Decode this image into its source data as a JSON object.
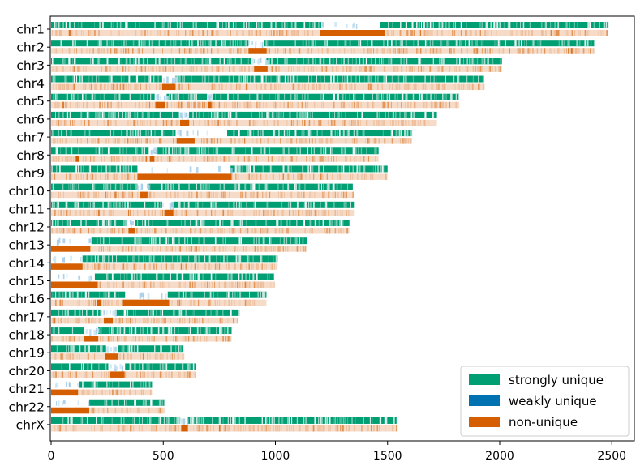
{
  "chart_data": {
    "type": "bar",
    "orientation": "horizontal",
    "xlim": [
      0,
      2560
    ],
    "x_ticks": [
      0,
      500,
      1000,
      1500,
      2000,
      2500
    ],
    "x_tick_labels": [
      "0",
      "500",
      "1000",
      "1500",
      "2000",
      "2500"
    ],
    "chromosomes": [
      {
        "name": "chr1",
        "length": 2485,
        "nonunique": [
          [
            1200,
            1490
          ]
        ],
        "gaps": [
          [
            1205,
            1465
          ]
        ]
      },
      {
        "name": "chr2",
        "length": 2425,
        "nonunique": [
          [
            880,
            960
          ]
        ],
        "gaps": [
          [
            880,
            950
          ]
        ]
      },
      {
        "name": "chr3",
        "length": 2010,
        "nonunique": [
          [
            905,
            965
          ]
        ],
        "gaps": [
          [
            900,
            960
          ]
        ]
      },
      {
        "name": "chr4",
        "length": 1930,
        "nonunique": [
          [
            495,
            555
          ]
        ],
        "gaps": [
          [
            495,
            555
          ]
        ]
      },
      {
        "name": "chr5",
        "length": 1820,
        "nonunique": [
          [
            465,
            510
          ],
          [
            700,
            715
          ]
        ],
        "gaps": [
          [
            462,
            515
          ],
          [
            695,
            715
          ]
        ]
      },
      {
        "name": "chr6",
        "length": 1720,
        "nonunique": [
          [
            575,
            615
          ]
        ],
        "gaps": [
          [
            570,
            615
          ]
        ]
      },
      {
        "name": "chr7",
        "length": 1605,
        "nonunique": [
          [
            560,
            640
          ]
        ],
        "gaps": [
          [
            555,
            785
          ]
        ]
      },
      {
        "name": "chr8",
        "length": 1460,
        "nonunique": [
          [
            440,
            460
          ],
          [
            110,
            125
          ]
        ],
        "gaps": [
          [
            435,
            470
          ]
        ]
      },
      {
        "name": "chr9",
        "length": 1500,
        "nonunique": [
          [
            385,
            805
          ]
        ],
        "gaps": [
          [
            385,
            800
          ]
        ]
      },
      {
        "name": "chr10",
        "length": 1345,
        "nonunique": [
          [
            395,
            430
          ]
        ],
        "gaps": [
          [
            385,
            435
          ]
        ]
      },
      {
        "name": "chr11",
        "length": 1350,
        "nonunique": [
          [
            505,
            545
          ]
        ],
        "gaps": [
          [
            495,
            545
          ]
        ]
      },
      {
        "name": "chr12",
        "length": 1330,
        "nonunique": [
          [
            345,
            375
          ]
        ],
        "gaps": [
          [
            340,
            375
          ]
        ]
      },
      {
        "name": "chr13",
        "length": 1140,
        "nonunique": [
          [
            0,
            175
          ]
        ],
        "gaps": [
          [
            0,
            180
          ]
        ]
      },
      {
        "name": "chr14",
        "length": 1010,
        "nonunique": [
          [
            0,
            140
          ]
        ],
        "gaps": [
          [
            0,
            140
          ]
        ]
      },
      {
        "name": "chr15",
        "length": 995,
        "nonunique": [
          [
            0,
            205
          ]
        ],
        "gaps": [
          [
            0,
            195
          ]
        ]
      },
      {
        "name": "chr16",
        "length": 960,
        "nonunique": [
          [
            205,
            225
          ],
          [
            320,
            525
          ]
        ],
        "gaps": [
          [
            330,
            520
          ]
        ]
      },
      {
        "name": "chr17",
        "length": 835,
        "nonunique": [
          [
            235,
            275
          ]
        ],
        "gaps": [
          [
            225,
            285
          ]
        ]
      },
      {
        "name": "chr18",
        "length": 805,
        "nonunique": [
          [
            145,
            210
          ]
        ],
        "gaps": [
          [
            145,
            210
          ]
        ]
      },
      {
        "name": "chr19",
        "length": 590,
        "nonunique": [
          [
            240,
            300
          ]
        ],
        "gaps": [
          [
            245,
            300
          ]
        ]
      },
      {
        "name": "chr20",
        "length": 645,
        "nonunique": [
          [
            260,
            325
          ]
        ],
        "gaps": [
          [
            255,
            330
          ]
        ]
      },
      {
        "name": "chr21",
        "length": 450,
        "nonunique": [
          [
            0,
            120
          ]
        ],
        "gaps": [
          [
            0,
            125
          ]
        ]
      },
      {
        "name": "chr22",
        "length": 510,
        "nonunique": [
          [
            0,
            170
          ]
        ],
        "gaps": [
          [
            0,
            170
          ]
        ]
      },
      {
        "name": "chrX",
        "length": 1540,
        "nonunique": [
          [
            580,
            610
          ]
        ],
        "gaps": [
          [
            575,
            610
          ]
        ]
      }
    ],
    "legend": {
      "position": "bottom-right",
      "entries": [
        {
          "label": "strongly unique",
          "color": "#009E73"
        },
        {
          "label": "weakly unique",
          "color": "#0072B2"
        },
        {
          "label": "non-unique",
          "color": "#D55E00"
        }
      ]
    },
    "colors": {
      "strong": "#009E73",
      "weak": "#0072B2",
      "nonunique": "#D55E00",
      "strong_light": "#7fcfb7",
      "nonunique_light": "#f6dcc8"
    }
  }
}
